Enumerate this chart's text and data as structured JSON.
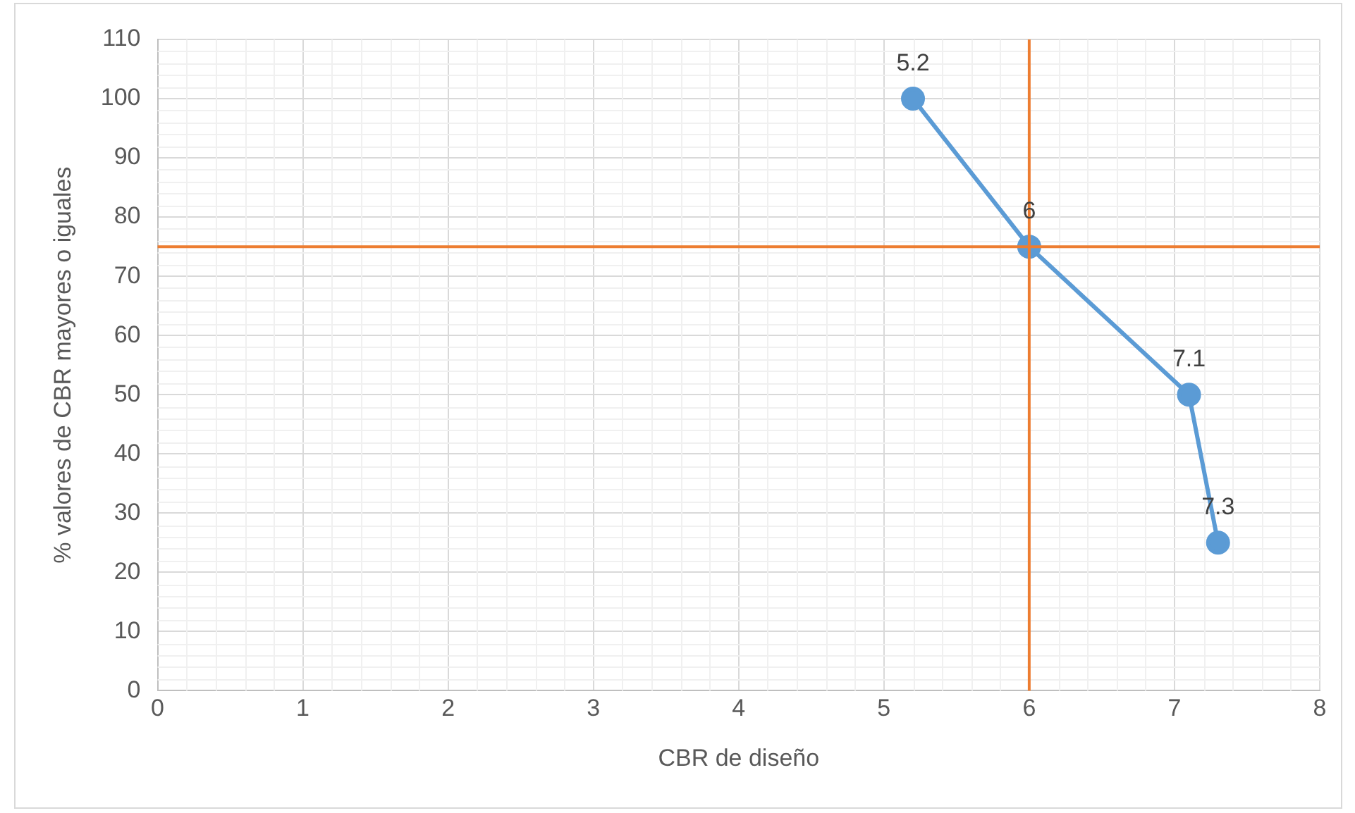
{
  "chart_data": {
    "type": "line",
    "xlabel": "CBR de diseño",
    "ylabel": "% valores de CBR mayores o iguales",
    "x": [
      5.2,
      6,
      7.1,
      7.3
    ],
    "series": [
      {
        "color": "#5b9bd5",
        "values": [
          100,
          75,
          50,
          25
        ]
      }
    ],
    "annotations": [
      {
        "text": "5.2",
        "x": 5.2,
        "y": 100
      },
      {
        "text": "6",
        "x": 6,
        "y": 75
      },
      {
        "text": "7.1",
        "x": 7.1,
        "y": 50
      },
      {
        "text": "7.3",
        "x": 7.3,
        "y": 25
      }
    ],
    "xlim": [
      0,
      8
    ],
    "xticks": [
      0,
      1,
      2,
      3,
      4,
      5,
      6,
      7,
      8
    ],
    "ylim": [
      0,
      110
    ],
    "yticks": [
      0,
      10,
      20,
      30,
      40,
      50,
      60,
      70,
      80,
      90,
      100,
      110
    ],
    "ref_lines": [
      {
        "axis": "y",
        "value": 75,
        "color": "#ed7d31"
      },
      {
        "axis": "x",
        "value": 6,
        "color": "#ed7d31"
      }
    ],
    "grid": true,
    "marker": "circle",
    "line_style": "solid",
    "legend": false
  }
}
